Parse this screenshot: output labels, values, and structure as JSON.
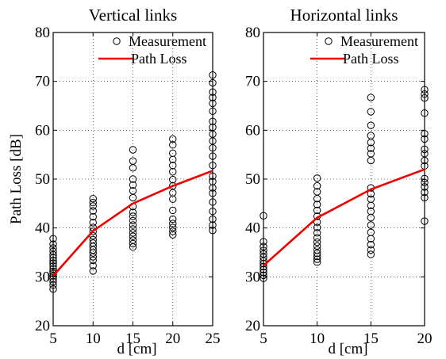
{
  "chart_data": [
    {
      "type": "scatter",
      "title": "Vertical links",
      "xlabel": "d [cm]",
      "ylabel": "Path Loss [dB]",
      "xlim": [
        5,
        25
      ],
      "ylim": [
        20,
        80
      ],
      "xticks": [
        "5",
        "10",
        "15",
        "20",
        "25"
      ],
      "yticks": [
        "20",
        "30",
        "40",
        "50",
        "60",
        "70",
        "80"
      ],
      "grid": true,
      "legend": {
        "placement": "top-right",
        "entries": [
          {
            "label": "Measurement",
            "marker": "circle"
          },
          {
            "label": "Path Loss",
            "marker": "line"
          }
        ]
      },
      "series": [
        {
          "name": "Measurement",
          "kind": "scatter",
          "color": "#000000",
          "points": [
            [
              5,
              27.5
            ],
            [
              5,
              28.3
            ],
            [
              5,
              29.0
            ],
            [
              5,
              29.6
            ],
            [
              5,
              30.2
            ],
            [
              5,
              30.7
            ],
            [
              5,
              31.1
            ],
            [
              5,
              31.6
            ],
            [
              5,
              32.2
            ],
            [
              5,
              32.8
            ],
            [
              5,
              33.3
            ],
            [
              5,
              33.9
            ],
            [
              5,
              34.5
            ],
            [
              5,
              35.2
            ],
            [
              5,
              35.9
            ],
            [
              5,
              36.7
            ],
            [
              5,
              37.8
            ],
            [
              10,
              31.2
            ],
            [
              10,
              32.3
            ],
            [
              10,
              33.4
            ],
            [
              10,
              34.1
            ],
            [
              10,
              34.9
            ],
            [
              10,
              35.5
            ],
            [
              10,
              36.2
            ],
            [
              10,
              36.9
            ],
            [
              10,
              37.6
            ],
            [
              10,
              38.4
            ],
            [
              10,
              39.3
            ],
            [
              10,
              40.1
            ],
            [
              10,
              41.1
            ],
            [
              10,
              42.3
            ],
            [
              10,
              43.5
            ],
            [
              10,
              44.5
            ],
            [
              10,
              45.2
            ],
            [
              10,
              46.0
            ],
            [
              15,
              36.1
            ],
            [
              15,
              36.8
            ],
            [
              15,
              37.5
            ],
            [
              15,
              38.3
            ],
            [
              15,
              39.0
            ],
            [
              15,
              39.8
            ],
            [
              15,
              40.6
            ],
            [
              15,
              41.5
            ],
            [
              15,
              42.4
            ],
            [
              15,
              43.2
            ],
            [
              15,
              44.4
            ],
            [
              15,
              46.2
            ],
            [
              15,
              47.6
            ],
            [
              15,
              48.8
            ],
            [
              15,
              50.0
            ],
            [
              15,
              52.3
            ],
            [
              15,
              53.7
            ],
            [
              15,
              56.0
            ],
            [
              20,
              38.6
            ],
            [
              20,
              39.3
            ],
            [
              20,
              40.1
            ],
            [
              20,
              40.9
            ],
            [
              20,
              41.8
            ],
            [
              20,
              43.6
            ],
            [
              20,
              45.9
            ],
            [
              20,
              47.2
            ],
            [
              20,
              48.6
            ],
            [
              20,
              49.9
            ],
            [
              20,
              51.5
            ],
            [
              20,
              52.8
            ],
            [
              20,
              54.0
            ],
            [
              20,
              55.3
            ],
            [
              20,
              57.0
            ],
            [
              20,
              58.2
            ],
            [
              25,
              39.5
            ],
            [
              25,
              40.6
            ],
            [
              25,
              41.8
            ],
            [
              25,
              43.4
            ],
            [
              25,
              45.3
            ],
            [
              25,
              47.1
            ],
            [
              25,
              48.2
            ],
            [
              25,
              49.5
            ],
            [
              25,
              50.6
            ],
            [
              25,
              52.8
            ],
            [
              25,
              54.7
            ],
            [
              25,
              56.4
            ],
            [
              25,
              57.8
            ],
            [
              25,
              59.2
            ],
            [
              25,
              60.6
            ],
            [
              25,
              61.8
            ],
            [
              25,
              63.9
            ],
            [
              25,
              65.5
            ],
            [
              25,
              66.7
            ],
            [
              25,
              67.8
            ],
            [
              25,
              69.7
            ],
            [
              25,
              71.3
            ]
          ]
        },
        {
          "name": "Path Loss",
          "kind": "line",
          "color": "#ee0000",
          "points": [
            [
              5,
              30.2
            ],
            [
              10,
              39.4
            ],
            [
              15,
              45.0
            ],
            [
              20,
              48.6
            ],
            [
              25,
              51.7
            ]
          ]
        }
      ]
    },
    {
      "type": "scatter",
      "title": "Horizontal links",
      "xlabel": "d [cm]",
      "ylabel": "",
      "xlim": [
        5,
        20
      ],
      "ylim": [
        20,
        80
      ],
      "xticks": [
        "5",
        "10",
        "15",
        "20"
      ],
      "yticks": [
        "20",
        "30",
        "40",
        "50",
        "60",
        "70",
        "80"
      ],
      "grid": true,
      "legend": {
        "placement": "top-right",
        "entries": [
          {
            "label": "Measurement",
            "marker": "circle"
          },
          {
            "label": "Path Loss",
            "marker": "line"
          }
        ]
      },
      "series": [
        {
          "name": "Measurement",
          "kind": "scatter",
          "color": "#000000",
          "points": [
            [
              5,
              29.7
            ],
            [
              5,
              30.3
            ],
            [
              5,
              30.9
            ],
            [
              5,
              31.5
            ],
            [
              5,
              32.1
            ],
            [
              5,
              32.7
            ],
            [
              5,
              33.3
            ],
            [
              5,
              34.0
            ],
            [
              5,
              34.7
            ],
            [
              5,
              35.4
            ],
            [
              5,
              36.2
            ],
            [
              5,
              37.2
            ],
            [
              5,
              42.5
            ],
            [
              10,
              33.0
            ],
            [
              10,
              33.6
            ],
            [
              10,
              34.2
            ],
            [
              10,
              34.8
            ],
            [
              10,
              35.5
            ],
            [
              10,
              36.3
            ],
            [
              10,
              37.1
            ],
            [
              10,
              38.0
            ],
            [
              10,
              39.0
            ],
            [
              10,
              40.1
            ],
            [
              10,
              41.2
            ],
            [
              10,
              42.4
            ],
            [
              10,
              43.6
            ],
            [
              10,
              44.8
            ],
            [
              10,
              46.0
            ],
            [
              10,
              47.4
            ],
            [
              10,
              48.6
            ],
            [
              10,
              50.2
            ],
            [
              15,
              34.6
            ],
            [
              15,
              35.5
            ],
            [
              15,
              36.6
            ],
            [
              15,
              37.8
            ],
            [
              15,
              39.1
            ],
            [
              15,
              40.6
            ],
            [
              15,
              42.1
            ],
            [
              15,
              43.4
            ],
            [
              15,
              44.6
            ],
            [
              15,
              45.9
            ],
            [
              15,
              47.0
            ],
            [
              15,
              48.2
            ],
            [
              15,
              53.8
            ],
            [
              15,
              55.2
            ],
            [
              15,
              56.3
            ],
            [
              15,
              57.5
            ],
            [
              15,
              58.9
            ],
            [
              15,
              61.0
            ],
            [
              15,
              63.8
            ],
            [
              15,
              66.7
            ],
            [
              20,
              41.4
            ],
            [
              20,
              46.2
            ],
            [
              20,
              47.3
            ],
            [
              20,
              48.4
            ],
            [
              20,
              49.3
            ],
            [
              20,
              50.1
            ],
            [
              20,
              52.7
            ],
            [
              20,
              53.8
            ],
            [
              20,
              55.2
            ],
            [
              20,
              56.1
            ],
            [
              20,
              58.2
            ],
            [
              20,
              59.3
            ],
            [
              20,
              63.5
            ],
            [
              20,
              66.6
            ],
            [
              20,
              67.4
            ],
            [
              20,
              68.3
            ]
          ]
        },
        {
          "name": "Path Loss",
          "kind": "line",
          "color": "#ee0000",
          "points": [
            [
              5,
              32.3
            ],
            [
              10,
              42.1
            ],
            [
              15,
              47.9
            ],
            [
              20,
              52.0
            ]
          ]
        }
      ]
    }
  ]
}
